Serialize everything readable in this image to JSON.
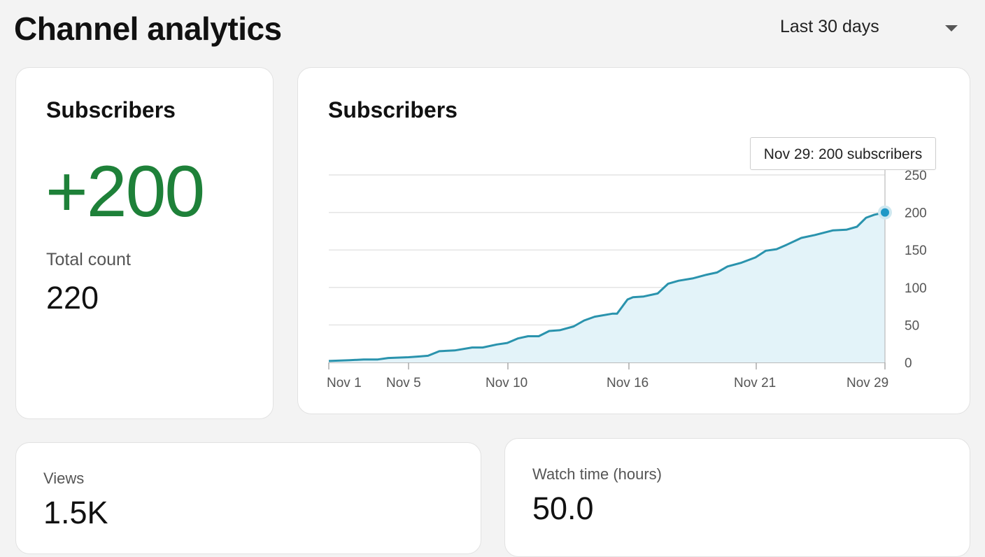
{
  "header": {
    "title": "Channel analytics",
    "date_range": "Last 30 days"
  },
  "summary_card": {
    "title": "Subscribers",
    "change": "+200",
    "total_label": "Total count",
    "total_value": "220"
  },
  "chart_card": {
    "title": "Subscribers",
    "tooltip": "Nov 29: 200 subscribers"
  },
  "views_card": {
    "label": "Views",
    "value": "1.5K"
  },
  "watch_card": {
    "label": "Watch time (hours)",
    "value": "50.0"
  },
  "colors": {
    "accent": "#2a93ad",
    "positive": "#1e8139",
    "fill": "#e3f3f9"
  },
  "chart_data": {
    "type": "area",
    "title": "Subscribers",
    "xlabel": "",
    "ylabel": "",
    "ylim": [
      0,
      250
    ],
    "yticks": [
      "0",
      "50",
      "100",
      "150",
      "200",
      "250"
    ],
    "xticks": [
      {
        "day": 1,
        "label": "Nov 1"
      },
      {
        "day": 5,
        "label": "Nov 5"
      },
      {
        "day": 10,
        "label": "Nov 10"
      },
      {
        "day": 16,
        "label": "Nov 16"
      },
      {
        "day": 21,
        "label": "Nov 21"
      },
      {
        "day": 29,
        "label": "Nov 29"
      }
    ],
    "points": [
      [
        1,
        2
      ],
      [
        2.05,
        3
      ],
      [
        2.75,
        4
      ],
      [
        3.46,
        4
      ],
      [
        3.98,
        6
      ],
      [
        5,
        7
      ],
      [
        5.56,
        8
      ],
      [
        5.98,
        9
      ],
      [
        6.55,
        15
      ],
      [
        7.32,
        16
      ],
      [
        8.2,
        20
      ],
      [
        8.73,
        20
      ],
      [
        9.44,
        24
      ],
      [
        9.97,
        26
      ],
      [
        10.49,
        32
      ],
      [
        11,
        35
      ],
      [
        11.53,
        35
      ],
      [
        12.05,
        42
      ],
      [
        12.57,
        43
      ],
      [
        13.26,
        48
      ],
      [
        13.78,
        56
      ],
      [
        14.3,
        61
      ],
      [
        15.17,
        65
      ],
      [
        15.41,
        65
      ],
      [
        15.93,
        84
      ],
      [
        16.16,
        87
      ],
      [
        16.58,
        88
      ],
      [
        17.13,
        92
      ],
      [
        17.54,
        105
      ],
      [
        17.95,
        109
      ],
      [
        18.5,
        112
      ],
      [
        19.05,
        117
      ],
      [
        19.46,
        120
      ],
      [
        19.87,
        128
      ],
      [
        20.42,
        133
      ],
      [
        20.97,
        140
      ],
      [
        21.6,
        149
      ],
      [
        22.26,
        151
      ],
      [
        22.9,
        157
      ],
      [
        23.8,
        166
      ],
      [
        24.65,
        170
      ],
      [
        25.75,
        176
      ],
      [
        26.6,
        177
      ],
      [
        27.26,
        181
      ],
      [
        27.83,
        193
      ],
      [
        28.35,
        197
      ],
      [
        29,
        200
      ]
    ],
    "highlight": {
      "day": 29,
      "value": 200
    }
  }
}
